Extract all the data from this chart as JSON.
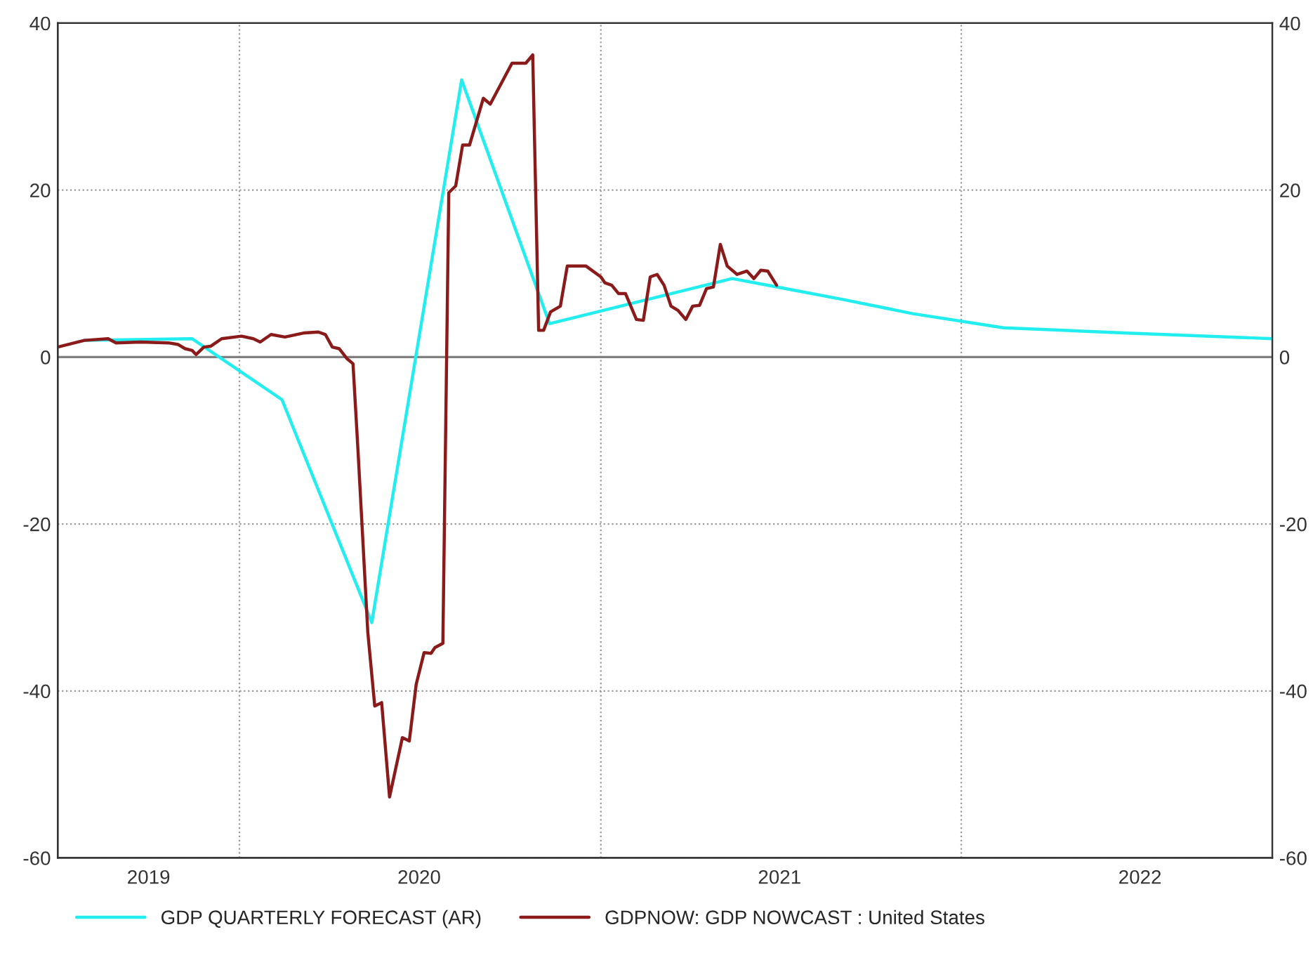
{
  "chart_data": {
    "type": "line",
    "xlim": [
      "2019-07-01",
      "2022-11-12"
    ],
    "xticks": [
      {
        "value": "2019-10-01",
        "label": "2019"
      },
      {
        "value": "2020-01-01",
        "label": null
      },
      {
        "value": "2020-07-01",
        "label": "2020"
      },
      {
        "value": "2021-01-01",
        "label": null
      },
      {
        "value": "2021-07-01",
        "label": "2021"
      },
      {
        "value": "2022-01-01",
        "label": null
      },
      {
        "value": "2022-07-01",
        "label": "2022"
      }
    ],
    "ylim": [
      -60,
      40
    ],
    "yticks": [
      -60,
      -40,
      -20,
      0,
      20,
      40
    ],
    "y2lim": [
      -60,
      40
    ],
    "y2ticks": [
      -60,
      -40,
      -20,
      0,
      20,
      40
    ],
    "grid": true,
    "legend": "bottom",
    "line_style": "solid",
    "ref_lines": [
      {
        "axis": "y",
        "value": 0,
        "color": "#808080"
      }
    ],
    "series": [
      {
        "name": "GDP QUARTERLY FORECAST (AR)",
        "color": "#22eef0",
        "x": [
          "2019-07-28",
          "2019-11-14",
          "2020-02-13",
          "2020-05-14",
          "2020-08-13",
          "2020-11-10",
          "2021-05-14",
          "2021-06-28",
          "2021-09-03",
          "2021-11-13",
          "2022-02-13",
          "2022-06-14",
          "2022-11-12"
        ],
        "values": [
          2.0,
          2.2,
          -5.1,
          -31.8,
          33.2,
          4.0,
          9.4,
          8.4,
          6.9,
          5.2,
          3.5,
          2.9,
          2.2
        ]
      },
      {
        "name": "GDPNOW: GDP NOWCAST : United States",
        "color": "#8b1a1a",
        "x": [
          "2019-07-01",
          "2019-07-18",
          "2019-07-28",
          "2019-08-21",
          "2019-08-29",
          "2019-09-23",
          "2019-10-21",
          "2019-10-31",
          "2019-11-07",
          "2019-11-14",
          "2019-11-18",
          "2019-11-26",
          "2019-12-03",
          "2019-12-14",
          "2020-01-03",
          "2020-01-15",
          "2020-01-22",
          "2020-02-02",
          "2020-02-16",
          "2020-03-07",
          "2020-03-21",
          "2020-03-28",
          "2020-04-04",
          "2020-04-11",
          "2020-04-19",
          "2020-04-25",
          "2020-04-30",
          "2020-05-10",
          "2020-05-17",
          "2020-05-24",
          "2020-06-01",
          "2020-06-14",
          "2020-06-21",
          "2020-06-28",
          "2020-07-06",
          "2020-07-13",
          "2020-07-17",
          "2020-07-25",
          "2020-07-31",
          "2020-08-07",
          "2020-08-14",
          "2020-08-21",
          "2020-09-04",
          "2020-09-11",
          "2020-10-03",
          "2020-10-17",
          "2020-10-24",
          "2020-10-30",
          "2020-11-04",
          "2020-11-11",
          "2020-11-21",
          "2020-11-28",
          "2020-12-17",
          "2021-01-01",
          "2021-01-05",
          "2021-01-12",
          "2021-01-19",
          "2021-01-26",
          "2021-02-06",
          "2021-02-13",
          "2021-02-20",
          "2021-02-27",
          "2021-03-06",
          "2021-03-13",
          "2021-03-20",
          "2021-03-28",
          "2021-04-04",
          "2021-04-11",
          "2021-04-18",
          "2021-04-25",
          "2021-05-02",
          "2021-05-09",
          "2021-05-19",
          "2021-05-29",
          "2021-06-05",
          "2021-06-12",
          "2021-06-19",
          "2021-06-28"
        ],
        "values": [
          1.2,
          1.7,
          2.0,
          2.2,
          1.7,
          1.8,
          1.7,
          1.5,
          1.0,
          0.8,
          0.3,
          1.2,
          1.3,
          2.2,
          2.5,
          2.2,
          1.8,
          2.7,
          2.4,
          2.9,
          3.0,
          2.7,
          1.2,
          1.0,
          -0.2,
          -0.8,
          -11.1,
          -33.0,
          -41.8,
          -41.4,
          -52.7,
          -45.6,
          -46.0,
          -39.2,
          -35.4,
          -35.5,
          -34.8,
          -34.3,
          19.7,
          20.5,
          25.4,
          25.4,
          31.0,
          30.3,
          35.2,
          35.2,
          36.2,
          3.2,
          3.2,
          5.4,
          6.1,
          10.9,
          10.9,
          9.6,
          8.9,
          8.6,
          7.6,
          7.6,
          4.5,
          4.4,
          9.6,
          9.9,
          8.6,
          6.1,
          5.6,
          4.5,
          6.1,
          6.2,
          8.2,
          8.4,
          13.5,
          10.9,
          9.9,
          10.3,
          9.4,
          10.4,
          10.3,
          8.6
        ]
      }
    ]
  }
}
